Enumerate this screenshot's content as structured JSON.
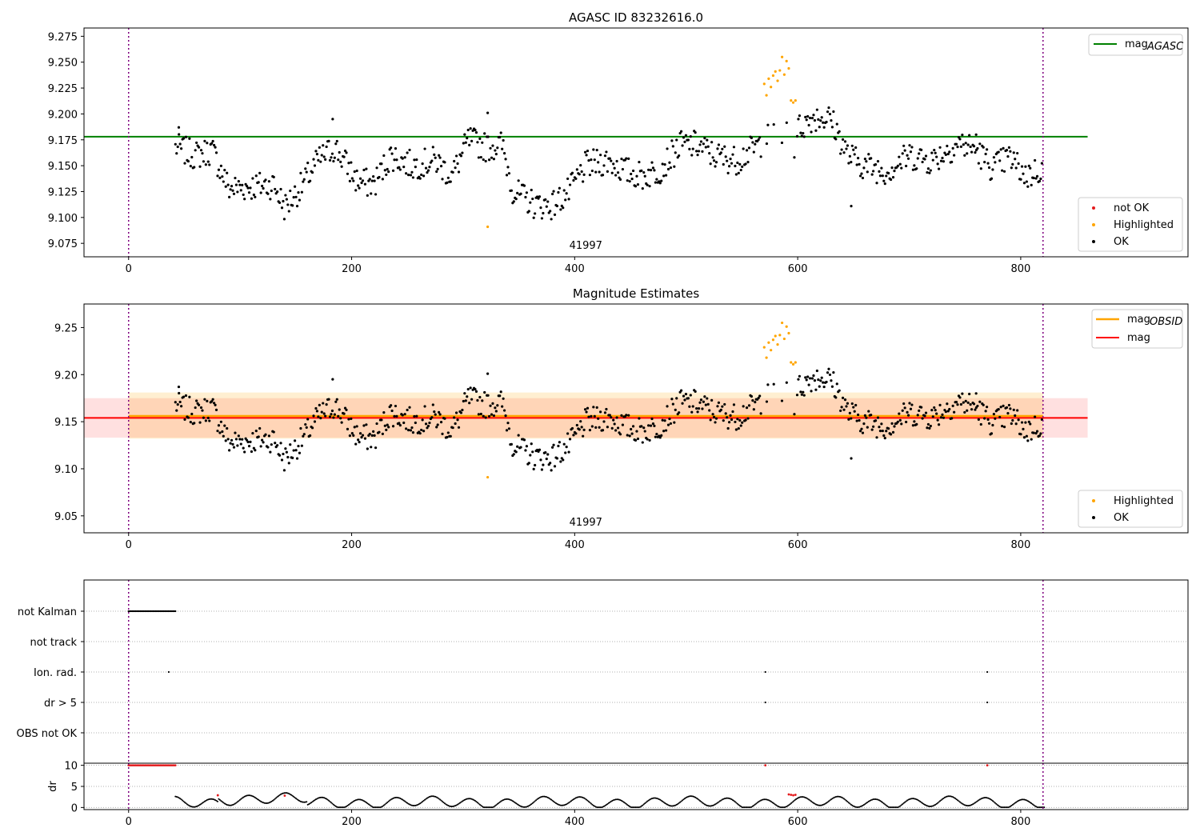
{
  "colors": {
    "ok": "#000000",
    "not_ok": "#e41a1c",
    "highlighted": "#ffa500",
    "mag_agasc": "#008000",
    "mag_obsid": "#ffa500",
    "mag": "#ff0000",
    "obs_boundary": "#800080"
  },
  "chart_data": [
    {
      "type": "scatter",
      "title": "AGASC ID 83232616.0",
      "xlim": [
        -40,
        950
      ],
      "ylim": [
        9.062,
        9.283
      ],
      "xticks": [
        0,
        200,
        400,
        600,
        800
      ],
      "yticks": [
        9.075,
        9.1,
        9.125,
        9.15,
        9.175,
        9.2,
        9.225,
        9.25,
        9.275
      ],
      "ytick_labels": [
        "9.075",
        "9.100",
        "9.125",
        "9.150",
        "9.175",
        "9.200",
        "9.225",
        "9.250",
        "9.275"
      ],
      "obs_boundaries": [
        0,
        820
      ],
      "obsid_label": "41997",
      "obsid_label_x": 410,
      "mag_agasc": 9.178,
      "mag_agasc_xrange": [
        -40,
        860
      ],
      "legend_lines": [
        {
          "label": "mag",
          "sub": "AGASC",
          "color_key": "mag_agasc"
        }
      ],
      "legend_points": [
        {
          "label": "not OK",
          "color_key": "not_ok"
        },
        {
          "label": "Highlighted",
          "color_key": "highlighted"
        },
        {
          "label": "OK",
          "color_key": "ok"
        }
      ],
      "series": {
        "ok_x_range": [
          42,
          820
        ],
        "highlighted": [
          {
            "x": 570,
            "y": 9.229
          },
          {
            "x": 572,
            "y": 9.218
          },
          {
            "x": 574,
            "y": 9.234
          },
          {
            "x": 576,
            "y": 9.226
          },
          {
            "x": 578,
            "y": 9.237
          },
          {
            "x": 580,
            "y": 9.241
          },
          {
            "x": 582,
            "y": 9.232
          },
          {
            "x": 584,
            "y": 9.242
          },
          {
            "x": 586,
            "y": 9.255
          },
          {
            "x": 588,
            "y": 9.238
          },
          {
            "x": 590,
            "y": 9.251
          },
          {
            "x": 592,
            "y": 9.244
          },
          {
            "x": 594,
            "y": 9.213
          },
          {
            "x": 596,
            "y": 9.211
          },
          {
            "x": 598,
            "y": 9.213
          },
          {
            "x": 322,
            "y": 9.091
          }
        ]
      }
    },
    {
      "type": "scatter",
      "title": "Magnitude Estimates",
      "xlim": [
        -40,
        950
      ],
      "ylim": [
        9.032,
        9.275
      ],
      "xticks": [
        0,
        200,
        400,
        600,
        800
      ],
      "yticks": [
        9.05,
        9.1,
        9.15,
        9.2,
        9.25
      ],
      "ytick_labels": [
        "9.05",
        "9.10",
        "9.15",
        "9.20",
        "9.25"
      ],
      "obs_boundaries": [
        0,
        820
      ],
      "obsid_label": "41997",
      "obsid_label_x": 410,
      "mag_obsid": 9.156,
      "mag_obsid_band": [
        9.132,
        9.181
      ],
      "mag_obsid_xrange": [
        0,
        820
      ],
      "mag": 9.154,
      "mag_band": [
        9.133,
        9.175
      ],
      "mag_xrange": [
        -40,
        860
      ],
      "legend_lines": [
        {
          "label": "mag",
          "sub": "OBSID",
          "color_key": "mag_obsid"
        },
        {
          "label": "mag",
          "sub": "",
          "color_key": "mag"
        }
      ],
      "legend_points": [
        {
          "label": "Highlighted",
          "color_key": "highlighted"
        },
        {
          "label": "OK",
          "color_key": "ok"
        }
      ]
    },
    {
      "type": "scatter",
      "title": "",
      "xlim": [
        -40,
        950
      ],
      "categories": [
        "not Kalman",
        "not track",
        "Ion. rad.",
        "dr > 5",
        "OBS not OK"
      ],
      "flags": {
        "not Kalman": {
          "x_range": [
            0,
            42
          ]
        },
        "not track": {
          "x_points": []
        },
        "Ion. rad.": {
          "x_points": [
            36,
            571,
            770
          ]
        },
        "dr > 5": {
          "x_points": [
            571,
            770
          ]
        },
        "OBS not OK": {
          "x_points": []
        }
      },
      "obs_boundaries": [
        0,
        820
      ]
    },
    {
      "type": "scatter",
      "title": "",
      "ylabel": "dr",
      "xlim": [
        -40,
        950
      ],
      "ylim": [
        -0.5,
        10.5
      ],
      "xticks": [
        0,
        200,
        400,
        600,
        800
      ],
      "yticks": [
        0,
        5,
        10
      ],
      "ytick_labels": [
        "0",
        "5",
        "10"
      ],
      "obs_boundaries": [
        0,
        820
      ],
      "dr_clipped_red": {
        "x_range": [
          0,
          42
        ],
        "value": 10
      },
      "dr_red_points": [
        {
          "x": 80,
          "y": 2.9
        },
        {
          "x": 140,
          "y": 2.8
        },
        {
          "x": 571,
          "y": 10
        },
        {
          "x": 592,
          "y": 3.1
        },
        {
          "x": 594,
          "y": 3.0
        },
        {
          "x": 596,
          "y": 2.9
        },
        {
          "x": 598,
          "y": 3.0
        },
        {
          "x": 770,
          "y": 10
        }
      ]
    }
  ]
}
